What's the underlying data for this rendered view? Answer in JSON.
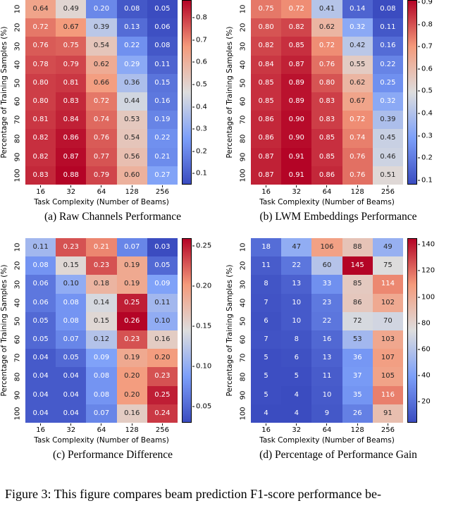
{
  "figure_caption": "Figure 3: This figure compares beam prediction F1-score performance be-",
  "colormap": {
    "name": "coolwarm",
    "anchors": [
      "#3b4cc0",
      "#7c9ff9",
      "#dddddd",
      "#f49a7b",
      "#b40426"
    ]
  },
  "chart_data": [
    {
      "type": "heatmap",
      "panel": "a",
      "caption": "(a) Raw Channels Performance",
      "xlabel": "Task Complexity (Number of Beams)",
      "ylabel": "Percentage of Training Samples (%)",
      "x_ticks": [
        "16",
        "32",
        "64",
        "128",
        "256"
      ],
      "y_ticks": [
        "10",
        "20",
        "30",
        "40",
        "50",
        "60",
        "70",
        "80",
        "90",
        "100"
      ],
      "values": [
        [
          0.64,
          0.49,
          0.2,
          0.08,
          0.05
        ],
        [
          0.72,
          0.67,
          0.39,
          0.13,
          0.06
        ],
        [
          0.76,
          0.75,
          0.54,
          0.22,
          0.08
        ],
        [
          0.78,
          0.79,
          0.62,
          0.29,
          0.11
        ],
        [
          0.8,
          0.81,
          0.66,
          0.36,
          0.15
        ],
        [
          0.8,
          0.83,
          0.72,
          0.44,
          0.16
        ],
        [
          0.81,
          0.84,
          0.74,
          0.53,
          0.19
        ],
        [
          0.82,
          0.86,
          0.76,
          0.54,
          0.22
        ],
        [
          0.82,
          0.87,
          0.77,
          0.56,
          0.21
        ],
        [
          0.83,
          0.88,
          0.79,
          0.6,
          0.27
        ]
      ],
      "vmin": 0.05,
      "vmax": 0.88,
      "value_decimals": 2,
      "colorbar_ticks": [
        0.8,
        0.7,
        0.6,
        0.5,
        0.4,
        0.3,
        0.2,
        0.1
      ],
      "colorbar_tick_decimals": 1,
      "legend_position": "right"
    },
    {
      "type": "heatmap",
      "panel": "b",
      "caption": "(b) LWM Embeddings Performance",
      "xlabel": "Task Complexity (Number of Beams)",
      "ylabel": "Percentage of Training Samples (%)",
      "x_ticks": [
        "16",
        "32",
        "64",
        "128",
        "256"
      ],
      "y_ticks": [
        "10",
        "20",
        "30",
        "40",
        "50",
        "60",
        "70",
        "80",
        "90",
        "100"
      ],
      "values": [
        [
          0.75,
          0.72,
          0.41,
          0.14,
          0.08
        ],
        [
          0.8,
          0.82,
          0.62,
          0.32,
          0.11
        ],
        [
          0.82,
          0.85,
          0.72,
          0.42,
          0.16
        ],
        [
          0.84,
          0.87,
          0.76,
          0.55,
          0.22
        ],
        [
          0.85,
          0.89,
          0.8,
          0.62,
          0.25
        ],
        [
          0.85,
          0.89,
          0.83,
          0.67,
          0.32
        ],
        [
          0.86,
          0.9,
          0.83,
          0.72,
          0.39
        ],
        [
          0.86,
          0.9,
          0.85,
          0.74,
          0.45
        ],
        [
          0.87,
          0.91,
          0.85,
          0.76,
          0.46
        ],
        [
          0.87,
          0.91,
          0.86,
          0.76,
          0.51
        ]
      ],
      "vmin": 0.08,
      "vmax": 0.91,
      "value_decimals": 2,
      "colorbar_ticks": [
        0.9,
        0.8,
        0.7,
        0.6,
        0.5,
        0.4,
        0.3,
        0.2,
        0.1
      ],
      "colorbar_tick_decimals": 1,
      "legend_position": "right"
    },
    {
      "type": "heatmap",
      "panel": "c",
      "caption": "(c) Performance Difference",
      "xlabel": "Task Complexity (Number of Beams)",
      "ylabel": "Percentage of Training Samples (%)",
      "x_ticks": [
        "16",
        "32",
        "64",
        "128",
        "256"
      ],
      "y_ticks": [
        "10",
        "20",
        "30",
        "40",
        "50",
        "60",
        "70",
        "80",
        "90",
        "100"
      ],
      "values": [
        [
          0.11,
          0.23,
          0.21,
          0.07,
          0.03
        ],
        [
          0.08,
          0.15,
          0.23,
          0.19,
          0.05
        ],
        [
          0.06,
          0.1,
          0.18,
          0.19,
          0.09
        ],
        [
          0.06,
          0.08,
          0.14,
          0.25,
          0.11
        ],
        [
          0.05,
          0.08,
          0.15,
          0.26,
          0.1
        ],
        [
          0.05,
          0.07,
          0.12,
          0.23,
          0.16
        ],
        [
          0.04,
          0.05,
          0.09,
          0.19,
          0.2
        ],
        [
          0.04,
          0.04,
          0.08,
          0.2,
          0.23
        ],
        [
          0.04,
          0.04,
          0.08,
          0.2,
          0.25
        ],
        [
          0.04,
          0.04,
          0.07,
          0.16,
          0.24
        ]
      ],
      "vmin": 0.03,
      "vmax": 0.26,
      "value_decimals": 2,
      "colorbar_ticks": [
        0.25,
        0.2,
        0.15,
        0.1,
        0.05
      ],
      "colorbar_tick_decimals": 2,
      "legend_position": "right"
    },
    {
      "type": "heatmap",
      "panel": "d",
      "caption": "(d) Percentage of Performance Gain",
      "xlabel": "Task Complexity (Number of Beams)",
      "ylabel": "Percentage of Training Samples (%)",
      "x_ticks": [
        "16",
        "32",
        "64",
        "128",
        "256"
      ],
      "y_ticks": [
        "10",
        "20",
        "30",
        "40",
        "50",
        "60",
        "70",
        "80",
        "90",
        "100"
      ],
      "values": [
        [
          18,
          47,
          106,
          88,
          49
        ],
        [
          11,
          22,
          60,
          145,
          75
        ],
        [
          8,
          13,
          33,
          85,
          114
        ],
        [
          7,
          10,
          23,
          86,
          102
        ],
        [
          6,
          10,
          22,
          72,
          70
        ],
        [
          7,
          8,
          16,
          53,
          103
        ],
        [
          5,
          6,
          13,
          36,
          107
        ],
        [
          5,
          5,
          11,
          37,
          105
        ],
        [
          5,
          4,
          10,
          35,
          116
        ],
        [
          4,
          4,
          9,
          26,
          91
        ]
      ],
      "vmin": 4,
      "vmax": 145,
      "value_decimals": 0,
      "colorbar_ticks": [
        140,
        120,
        100,
        80,
        60,
        40,
        20
      ],
      "colorbar_tick_decimals": 0,
      "legend_position": "right"
    }
  ]
}
